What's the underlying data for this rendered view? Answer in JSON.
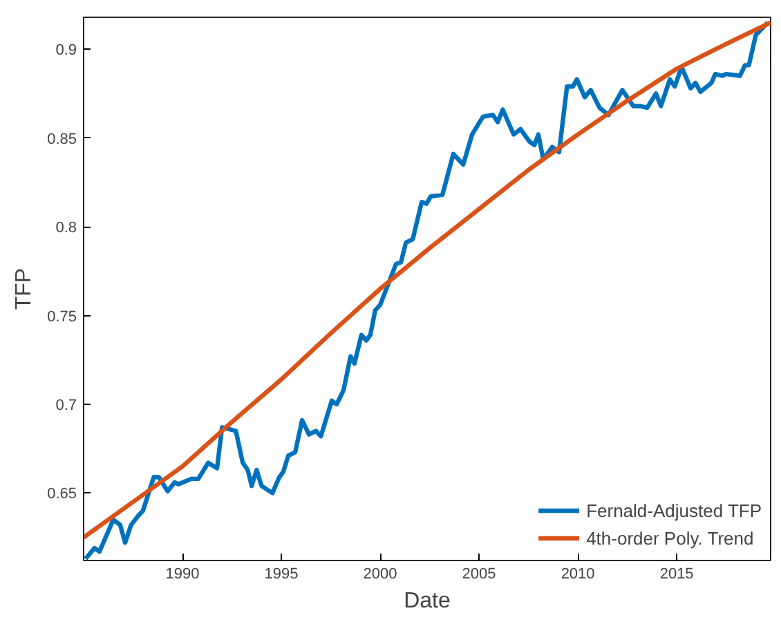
{
  "chart_data": {
    "type": "line",
    "xlabel": "Date",
    "ylabel": "TFP",
    "xlim": [
      1985,
      2019.75
    ],
    "ylim": [
      0.612,
      0.918
    ],
    "xticks": [
      1990,
      1995,
      2000,
      2005,
      2010,
      2015
    ],
    "yticks": [
      0.65,
      0.7,
      0.75,
      0.8,
      0.85,
      0.9
    ],
    "grid": false,
    "legend": "bottom right",
    "series": [
      {
        "name": "Fernald-Adjusted TFP",
        "color": "#0072bd",
        "x": [
          1985.1,
          1985.55,
          1985.8,
          1986.5,
          1986.85,
          1987.1,
          1987.4,
          1987.75,
          1988.0,
          1988.55,
          1988.8,
          1989.25,
          1989.6,
          1989.8,
          1990.45,
          1990.8,
          1991.3,
          1991.75,
          1992.0,
          1992.35,
          1992.7,
          1993.05,
          1993.3,
          1993.5,
          1993.75,
          1994.0,
          1994.55,
          1994.9,
          1995.1,
          1995.35,
          1995.7,
          1996.05,
          1996.4,
          1996.75,
          1997.0,
          1997.55,
          1997.8,
          1998.15,
          1998.5,
          1998.7,
          1999.05,
          1999.3,
          1999.5,
          1999.75,
          2000.0,
          2000.35,
          2000.8,
          2001.05,
          2001.3,
          2001.65,
          2002.1,
          2002.35,
          2002.55,
          2003.15,
          2003.7,
          2004.2,
          2004.65,
          2005.2,
          2005.7,
          2005.95,
          2006.2,
          2006.75,
          2007.1,
          2007.55,
          2007.8,
          2008.0,
          2008.25,
          2008.7,
          2009.05,
          2009.45,
          2009.75,
          2009.95,
          2010.35,
          2010.65,
          2011.1,
          2011.55,
          2012.25,
          2012.8,
          2013.15,
          2013.5,
          2013.95,
          2014.2,
          2014.65,
          2014.9,
          2015.25,
          2015.7,
          2015.95,
          2016.2,
          2016.75,
          2016.95,
          2017.3,
          2017.5,
          2018.2,
          2018.45,
          2018.65,
          2019.0,
          2019.6
        ],
        "values": [
          0.613,
          0.619,
          0.617,
          0.635,
          0.632,
          0.622,
          0.632,
          0.637,
          0.64,
          0.659,
          0.659,
          0.651,
          0.656,
          0.655,
          0.658,
          0.658,
          0.667,
          0.664,
          0.687,
          0.686,
          0.685,
          0.667,
          0.663,
          0.654,
          0.663,
          0.654,
          0.65,
          0.659,
          0.662,
          0.671,
          0.673,
          0.691,
          0.683,
          0.685,
          0.682,
          0.702,
          0.7,
          0.708,
          0.727,
          0.723,
          0.739,
          0.736,
          0.739,
          0.753,
          0.756,
          0.766,
          0.779,
          0.78,
          0.791,
          0.793,
          0.814,
          0.813,
          0.817,
          0.818,
          0.841,
          0.835,
          0.852,
          0.862,
          0.863,
          0.859,
          0.866,
          0.852,
          0.855,
          0.848,
          0.846,
          0.852,
          0.838,
          0.845,
          0.842,
          0.879,
          0.879,
          0.883,
          0.873,
          0.877,
          0.867,
          0.863,
          0.877,
          0.868,
          0.868,
          0.867,
          0.875,
          0.868,
          0.883,
          0.879,
          0.89,
          0.878,
          0.881,
          0.876,
          0.881,
          0.886,
          0.885,
          0.886,
          0.885,
          0.891,
          0.891,
          0.908,
          0.915
        ]
      },
      {
        "name": "4th-order Poly. Trend",
        "color": "#d95319",
        "x": [
          1985,
          1987.5,
          1990,
          1992.5,
          1995,
          1997.5,
          2000,
          2002.5,
          2005,
          2007.5,
          2010,
          2012.5,
          2015,
          2017.5,
          2019.75
        ],
        "values": [
          0.625,
          0.645,
          0.665,
          0.69,
          0.714,
          0.74,
          0.765,
          0.788,
          0.81,
          0.832,
          0.852,
          0.871,
          0.889,
          0.903,
          0.915
        ]
      }
    ]
  }
}
